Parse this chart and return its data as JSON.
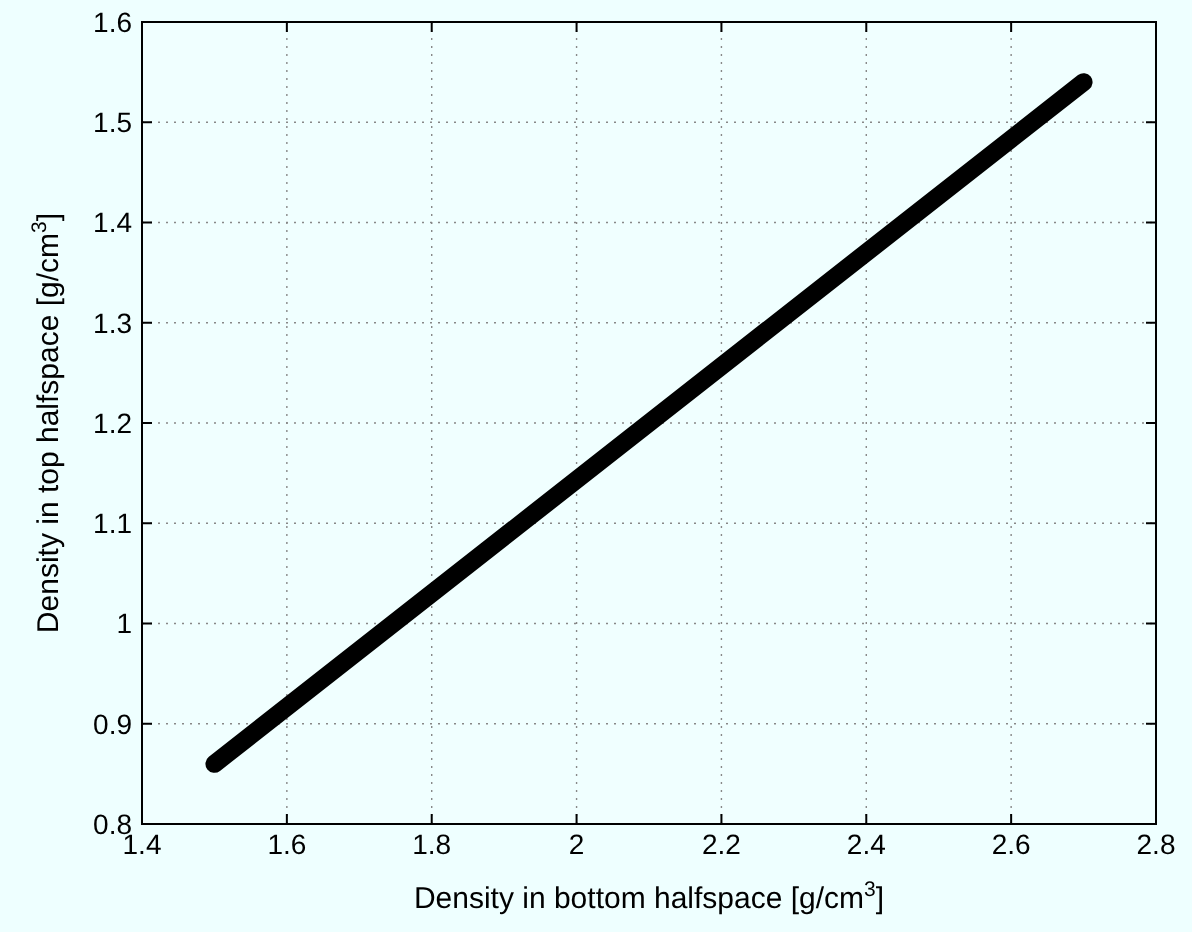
{
  "chart_data": {
    "type": "line",
    "xlabel": "Density in bottom halfspace [g/cm$^{3}$]",
    "ylabel": "Density in top halfspace [g/cm$^{3}$]",
    "x": [
      1.5,
      2.7
    ],
    "series": [
      {
        "color": "#000000",
        "values": [
          0.86,
          1.54
        ]
      }
    ],
    "xlim": [
      1.4,
      2.8
    ],
    "xticks": [
      1.4,
      1.6,
      1.8,
      2,
      2.2,
      2.4,
      2.6,
      2.8
    ],
    "ylim": [
      0.8,
      1.6
    ],
    "yticks": [
      0.8,
      0.9,
      1,
      1.1,
      1.2,
      1.3,
      1.4,
      1.5,
      1.6
    ],
    "grid": true,
    "line_style": "solid"
  }
}
